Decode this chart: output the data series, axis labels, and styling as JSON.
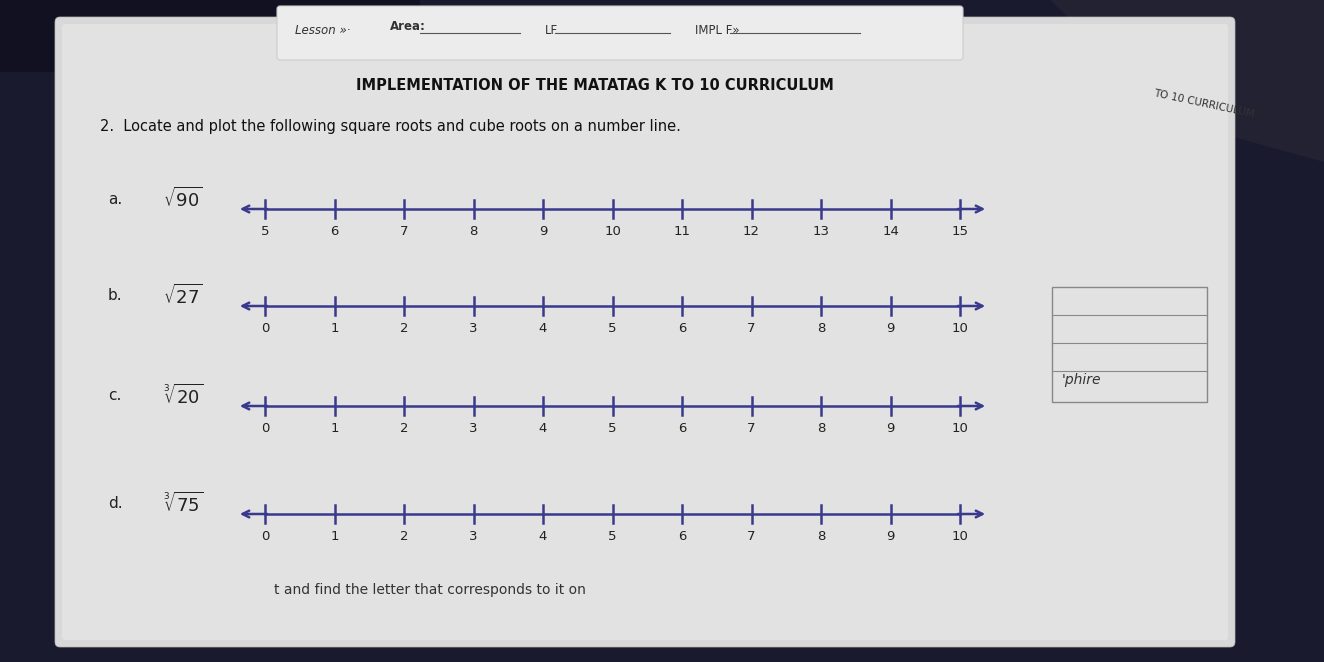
{
  "title": "IMPLEMENTATION OF THE MATATAG K TO 10 CURRICULUM",
  "title2": "TO 10 CURRICULUM",
  "question": "2.  Locate and plot the following square roots and cube roots on a number line.",
  "bg_color": "#1a1a2e",
  "paper_color": "#dcdcdc",
  "number_lines": [
    {
      "label": "$\\sqrt{90}$",
      "letter": "a.",
      "ticks": [
        5,
        6,
        7,
        8,
        9,
        10,
        11,
        12,
        13,
        14,
        15
      ]
    },
    {
      "label": "$\\sqrt{27}$",
      "letter": "b.",
      "ticks": [
        0,
        1,
        2,
        3,
        4,
        5,
        6,
        7,
        8,
        9,
        10
      ]
    },
    {
      "label": "$\\sqrt[3]{20}$",
      "letter": "c.",
      "ticks": [
        0,
        1,
        2,
        3,
        4,
        5,
        6,
        7,
        8,
        9,
        10
      ]
    },
    {
      "label": "$\\sqrt[3]{75}$",
      "letter": "d.",
      "ticks": [
        0,
        1,
        2,
        3,
        4,
        5,
        6,
        7,
        8,
        9,
        10
      ]
    }
  ],
  "line_color": "#3a3a8c",
  "tick_color": "#3a3a8c",
  "side_note": "'phire",
  "bottom_text": "t and find the letter that corresponds to it on",
  "header_lesson": "Lesson »·",
  "header_area": "Area:",
  "header_lf": "LF.",
  "header_impl": "IMPL F»...",
  "title_right": "TO 10 CURRICULUM"
}
